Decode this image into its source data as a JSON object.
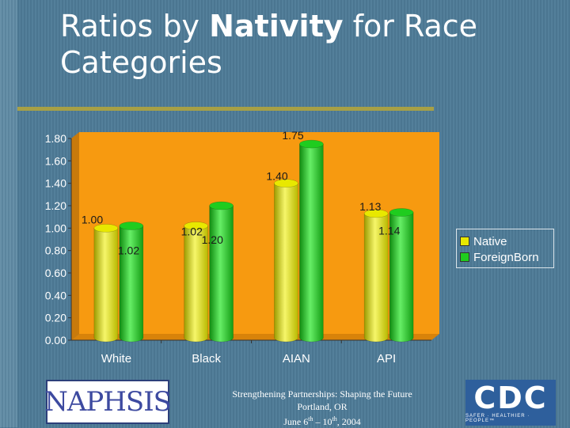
{
  "slide": {
    "title_prefix": "Ratios by ",
    "title_bold": "Nativity",
    "title_suffix": " for Race Categories",
    "footer_line1": "Strengthening Partnerships: Shaping the Future",
    "footer_line2": "Portland, OR",
    "footer_line3_pre": "June 6",
    "footer_line3_sup1": "th",
    "footer_line3_mid": " – 10",
    "footer_line3_sup2": "th",
    "footer_line3_post": ", 2004",
    "logo_left_text": "NAPHSIS",
    "logo_right_text": "CDC",
    "logo_right_tagline": "SAFER · HEALTHIER · PEOPLE™"
  },
  "colors": {
    "plot_background": "#f79a10",
    "native": "#e8e800",
    "foreign_born": "#1fcc1f",
    "accent_rule": "#a7a046"
  },
  "chart_data": {
    "type": "bar",
    "style": "3d-cylinder",
    "categories": [
      "White",
      "Black",
      "AIAN",
      "API"
    ],
    "series": [
      {
        "name": "Native",
        "values": [
          1.0,
          1.02,
          1.4,
          1.13
        ]
      },
      {
        "name": "ForeignBorn",
        "values": [
          1.02,
          1.2,
          1.75,
          1.14
        ]
      }
    ],
    "data_labels": [
      [
        "1.00",
        "1.02"
      ],
      [
        "1.02",
        "1.20"
      ],
      [
        "1.40",
        "1.75"
      ],
      [
        "1.13",
        "1.14"
      ]
    ],
    "y_ticks": [
      "0.00",
      "0.20",
      "0.40",
      "0.60",
      "0.80",
      "1.00",
      "1.20",
      "1.40",
      "1.60",
      "1.80"
    ],
    "ylim": [
      0,
      1.8
    ],
    "legend_position": "right",
    "grid": false
  }
}
